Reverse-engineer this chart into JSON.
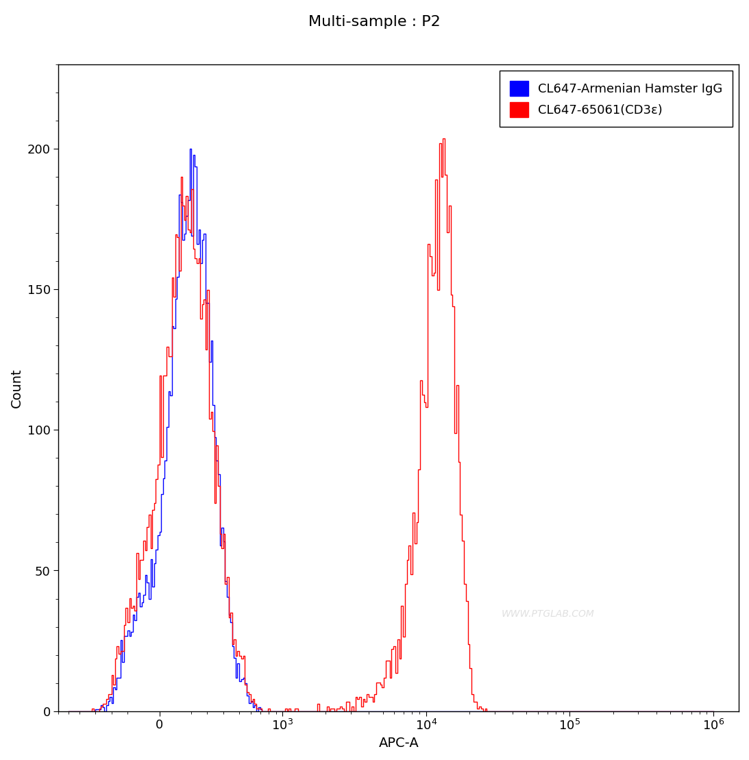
{
  "title": "Multi-sample : P2",
  "xlabel": "APC-A",
  "ylabel": "Count",
  "ylim": [
    0,
    230
  ],
  "blue_color": "#0000FF",
  "red_color": "#FF0000",
  "legend_label_blue": "CL647-Armenian Hamster IgG",
  "legend_label_red": "CL647-65061(CD3ε)",
  "watermark": "WWW.PTGLAB.COM",
  "background_color": "#FFFFFF",
  "title_fontsize": 16,
  "axis_label_fontsize": 14,
  "tick_fontsize": 13,
  "legend_fontsize": 13,
  "linthresh": 500
}
